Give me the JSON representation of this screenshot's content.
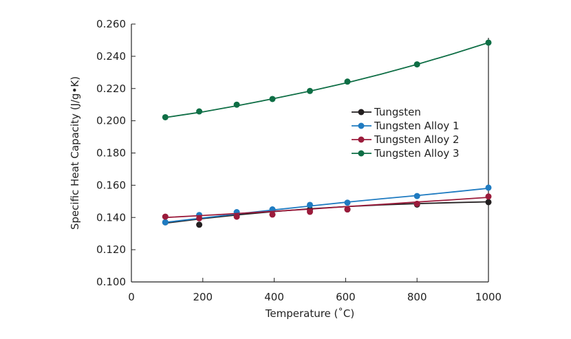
{
  "chart_data": {
    "type": "line",
    "title": "",
    "xlabel": "Temperature (˚C)",
    "ylabel": "Specific Heat Capacity (J/g•K)",
    "xlim": [
      0,
      1000
    ],
    "ylim": [
      0.1,
      0.26
    ],
    "x_ticks": [
      "0",
      "200",
      "400",
      "600",
      "800",
      "1000"
    ],
    "y_ticks": [
      "0.100",
      "0.120",
      "0.140",
      "0.160",
      "0.180",
      "0.200",
      "0.220",
      "0.240",
      "0.260"
    ],
    "grid": false,
    "legend_position": "right-center",
    "series": [
      {
        "name": "Tungsten",
        "color": "#231f20",
        "points": [
          [
            95,
            0.137
          ],
          [
            190,
            0.1355
          ],
          [
            295,
            0.142
          ],
          [
            395,
            0.1445
          ],
          [
            500,
            0.145
          ],
          [
            605,
            0.145
          ],
          [
            800,
            0.148
          ],
          [
            1000,
            0.1495
          ]
        ],
        "fit": [
          [
            95,
            0.1365
          ],
          [
            200,
            0.1393
          ],
          [
            300,
            0.1417
          ],
          [
            400,
            0.1437
          ],
          [
            500,
            0.1454
          ],
          [
            600,
            0.1467
          ],
          [
            700,
            0.1478
          ],
          [
            800,
            0.1486
          ],
          [
            900,
            0.1492
          ],
          [
            1000,
            0.1497
          ]
        ]
      },
      {
        "name": "Tungsten Alloy 1",
        "color": "#1f7bc1",
        "points": [
          [
            95,
            0.137
          ],
          [
            190,
            0.1415
          ],
          [
            295,
            0.1433
          ],
          [
            395,
            0.145
          ],
          [
            500,
            0.1478
          ],
          [
            605,
            0.1492
          ],
          [
            800,
            0.1533
          ],
          [
            1000,
            0.1585
          ]
        ],
        "fit": [
          [
            95,
            0.137
          ],
          [
            200,
            0.1397
          ],
          [
            300,
            0.1423
          ],
          [
            400,
            0.1447
          ],
          [
            500,
            0.1471
          ],
          [
            600,
            0.1494
          ],
          [
            700,
            0.1516
          ],
          [
            800,
            0.1536
          ],
          [
            900,
            0.1558
          ],
          [
            1000,
            0.1581
          ]
        ]
      },
      {
        "name": "Tungsten Alloy 2",
        "color": "#9b1b3b",
        "points": [
          [
            95,
            0.1405
          ],
          [
            190,
            0.1395
          ],
          [
            295,
            0.1405
          ],
          [
            395,
            0.1418
          ],
          [
            500,
            0.1435
          ],
          [
            605,
            0.145
          ],
          [
            800,
            0.1485
          ],
          [
            1000,
            0.153
          ]
        ],
        "fit": [
          [
            95,
            0.14
          ],
          [
            200,
            0.1412
          ],
          [
            300,
            0.1425
          ],
          [
            400,
            0.1438
          ],
          [
            500,
            0.1452
          ],
          [
            600,
            0.1467
          ],
          [
            700,
            0.1481
          ],
          [
            800,
            0.1496
          ],
          [
            900,
            0.151
          ],
          [
            1000,
            0.1525
          ]
        ]
      },
      {
        "name": "Tungsten Alloy 3",
        "color": "#0e6e45",
        "points": [
          [
            95,
            0.2022
          ],
          [
            190,
            0.2058
          ],
          [
            295,
            0.21
          ],
          [
            395,
            0.2135
          ],
          [
            500,
            0.2185
          ],
          [
            605,
            0.2243
          ],
          [
            800,
            0.235
          ],
          [
            1000,
            0.2485
          ]
        ],
        "fit": [
          [
            95,
            0.202
          ],
          [
            200,
            0.2055
          ],
          [
            300,
            0.2095
          ],
          [
            400,
            0.2138
          ],
          [
            500,
            0.2184
          ],
          [
            600,
            0.2234
          ],
          [
            700,
            0.229
          ],
          [
            800,
            0.235
          ],
          [
            900,
            0.2415
          ],
          [
            1000,
            0.2485
          ]
        ]
      }
    ]
  }
}
